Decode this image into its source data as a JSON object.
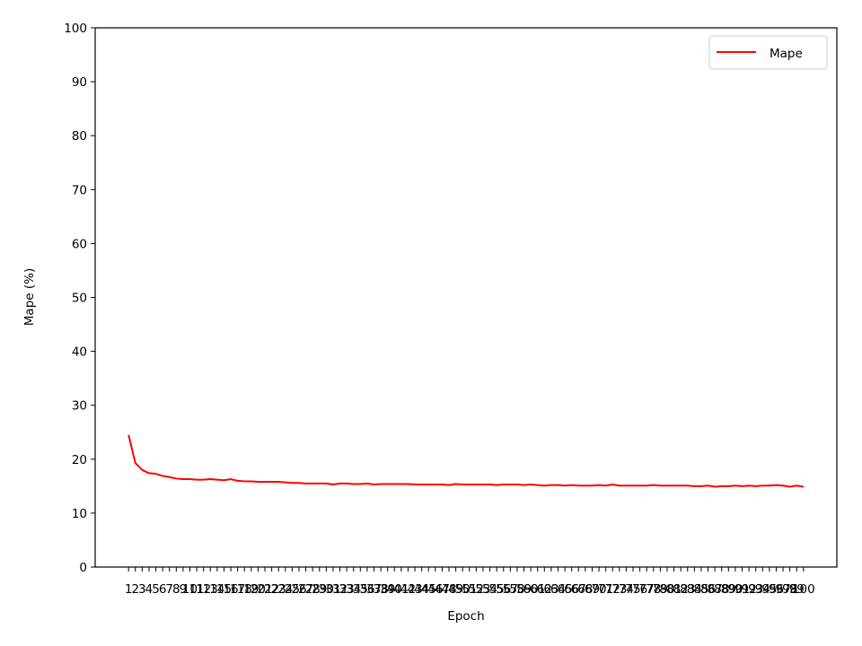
{
  "chart_data": {
    "type": "line",
    "title": "",
    "xlabel": "Epoch",
    "ylabel": "Mape (%)",
    "ylim": [
      0,
      100
    ],
    "yticks": [
      0,
      10,
      20,
      30,
      40,
      50,
      60,
      70,
      80,
      90,
      100
    ],
    "grid": false,
    "legend_position": "top-right",
    "x": [
      1,
      2,
      3,
      4,
      5,
      6,
      7,
      8,
      9,
      10,
      11,
      12,
      13,
      14,
      15,
      16,
      17,
      18,
      19,
      20,
      21,
      22,
      23,
      24,
      25,
      26,
      27,
      28,
      29,
      30,
      31,
      32,
      33,
      34,
      35,
      36,
      37,
      38,
      39,
      40,
      41,
      42,
      43,
      44,
      45,
      46,
      47,
      48,
      49,
      50,
      51,
      52,
      53,
      54,
      55,
      56,
      57,
      58,
      59,
      60,
      61,
      62,
      63,
      64,
      65,
      66,
      67,
      68,
      69,
      70,
      71,
      72,
      73,
      74,
      75,
      76,
      77,
      78,
      79,
      80,
      81,
      82,
      83,
      84,
      85,
      86,
      87,
      88,
      89,
      90,
      91,
      92,
      93,
      94,
      95,
      96,
      97,
      98,
      99,
      100
    ],
    "series": [
      {
        "name": "Mape",
        "color": "#ff0000",
        "values": [
          24.5,
          19.3,
          18.0,
          17.4,
          17.3,
          16.9,
          16.7,
          16.4,
          16.3,
          16.3,
          16.2,
          16.2,
          16.3,
          16.2,
          16.1,
          16.3,
          16.0,
          15.9,
          15.9,
          15.8,
          15.8,
          15.8,
          15.8,
          15.7,
          15.6,
          15.6,
          15.5,
          15.5,
          15.5,
          15.5,
          15.3,
          15.5,
          15.5,
          15.4,
          15.4,
          15.5,
          15.3,
          15.4,
          15.4,
          15.4,
          15.4,
          15.4,
          15.3,
          15.3,
          15.3,
          15.3,
          15.3,
          15.2,
          15.4,
          15.3,
          15.3,
          15.3,
          15.3,
          15.3,
          15.2,
          15.3,
          15.3,
          15.3,
          15.2,
          15.3,
          15.2,
          15.1,
          15.2,
          15.2,
          15.1,
          15.2,
          15.1,
          15.1,
          15.1,
          15.2,
          15.1,
          15.3,
          15.1,
          15.1,
          15.1,
          15.1,
          15.1,
          15.2,
          15.1,
          15.1,
          15.1,
          15.1,
          15.1,
          15.0,
          15.0,
          15.1,
          14.9,
          15.0,
          15.0,
          15.1,
          15.0,
          15.1,
          15.0,
          15.1,
          15.1,
          15.2,
          15.1,
          14.9,
          15.1,
          14.9
        ]
      }
    ]
  }
}
